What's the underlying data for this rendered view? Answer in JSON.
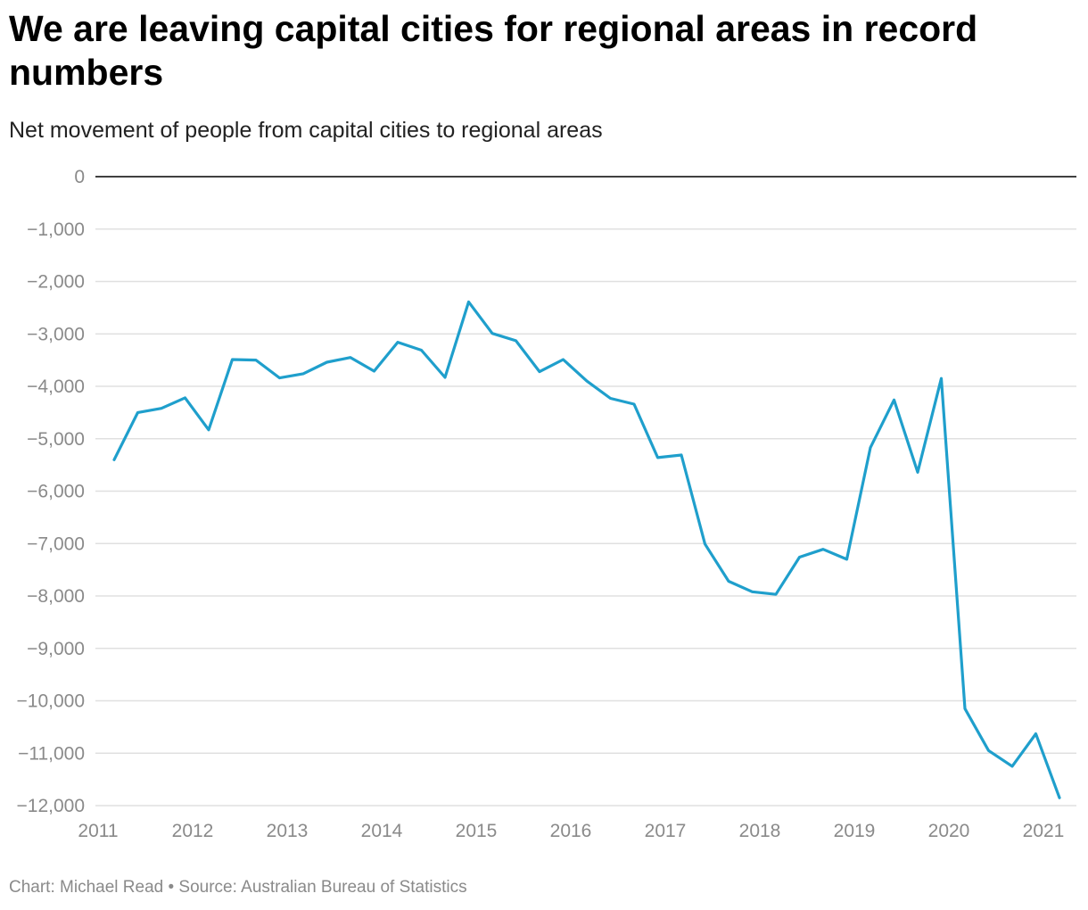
{
  "title": "We are leaving capital cities for regional areas in record numbers",
  "subtitle": "Net movement of people from capital cities to regional areas",
  "footer": {
    "chart_prefix": "Chart: ",
    "author": "Michael Read",
    "separator": " • ",
    "source_prefix": "Source: ",
    "source": "Australian Bureau of Statistics"
  },
  "colors": {
    "line": "#1f9fcc",
    "grid": "#e0e0e0",
    "zero_line": "#000000",
    "tick_text": "#8a8a8a"
  },
  "chart_data": {
    "type": "line",
    "title": "We are leaving capital cities for regional areas in record numbers",
    "subtitle": "Net movement of people from capital cities to regional areas",
    "xlabel": "",
    "ylabel": "",
    "xlim": [
      2011,
      2021.25
    ],
    "ylim": [
      -12000,
      0
    ],
    "grid": true,
    "legend": "none",
    "x_ticks": [
      2011,
      2012,
      2013,
      2014,
      2015,
      2016,
      2017,
      2018,
      2019,
      2020,
      2021
    ],
    "x_tick_labels": [
      "2011",
      "2012",
      "2013",
      "2014",
      "2015",
      "2016",
      "2017",
      "2018",
      "2019",
      "2020",
      "2021"
    ],
    "y_ticks": [
      0,
      -1000,
      -2000,
      -3000,
      -4000,
      -5000,
      -6000,
      -7000,
      -8000,
      -9000,
      -10000,
      -11000,
      -12000
    ],
    "y_tick_labels": [
      "0",
      "−1,000",
      "−2,000",
      "−3,000",
      "−4,000",
      "−5,000",
      "−6,000",
      "−7,000",
      "−8,000",
      "−9,000",
      "−10,000",
      "−11,000",
      "−12,000"
    ],
    "series": [
      {
        "x": [
          2011.17,
          2011.42,
          2011.67,
          2011.92,
          2012.17,
          2012.42,
          2012.67,
          2012.92,
          2013.17,
          2013.42,
          2013.67,
          2013.92,
          2014.17,
          2014.42,
          2014.67,
          2014.92,
          2015.17,
          2015.42,
          2015.67,
          2015.92,
          2016.17,
          2016.42,
          2016.67,
          2016.92,
          2017.17,
          2017.42,
          2017.67,
          2017.92,
          2018.17,
          2018.42,
          2018.67,
          2018.92,
          2019.17,
          2019.42,
          2019.67,
          2019.92,
          2020.17,
          2020.42,
          2020.67,
          2020.92,
          2021.17
        ],
        "values": [
          -5400,
          -4500,
          -4420,
          -4220,
          -4830,
          -3490,
          -3500,
          -3840,
          -3760,
          -3540,
          -3450,
          -3710,
          -3160,
          -3310,
          -3830,
          -2390,
          -2990,
          -3130,
          -3720,
          -3490,
          -3900,
          -4230,
          -4340,
          -5360,
          -5310,
          -7010,
          -7720,
          -7920,
          -7970,
          -7260,
          -7110,
          -7300,
          -5170,
          -4260,
          -5640,
          -3850,
          -10150,
          -10950,
          -11250,
          -10630,
          -11850
        ]
      }
    ]
  }
}
